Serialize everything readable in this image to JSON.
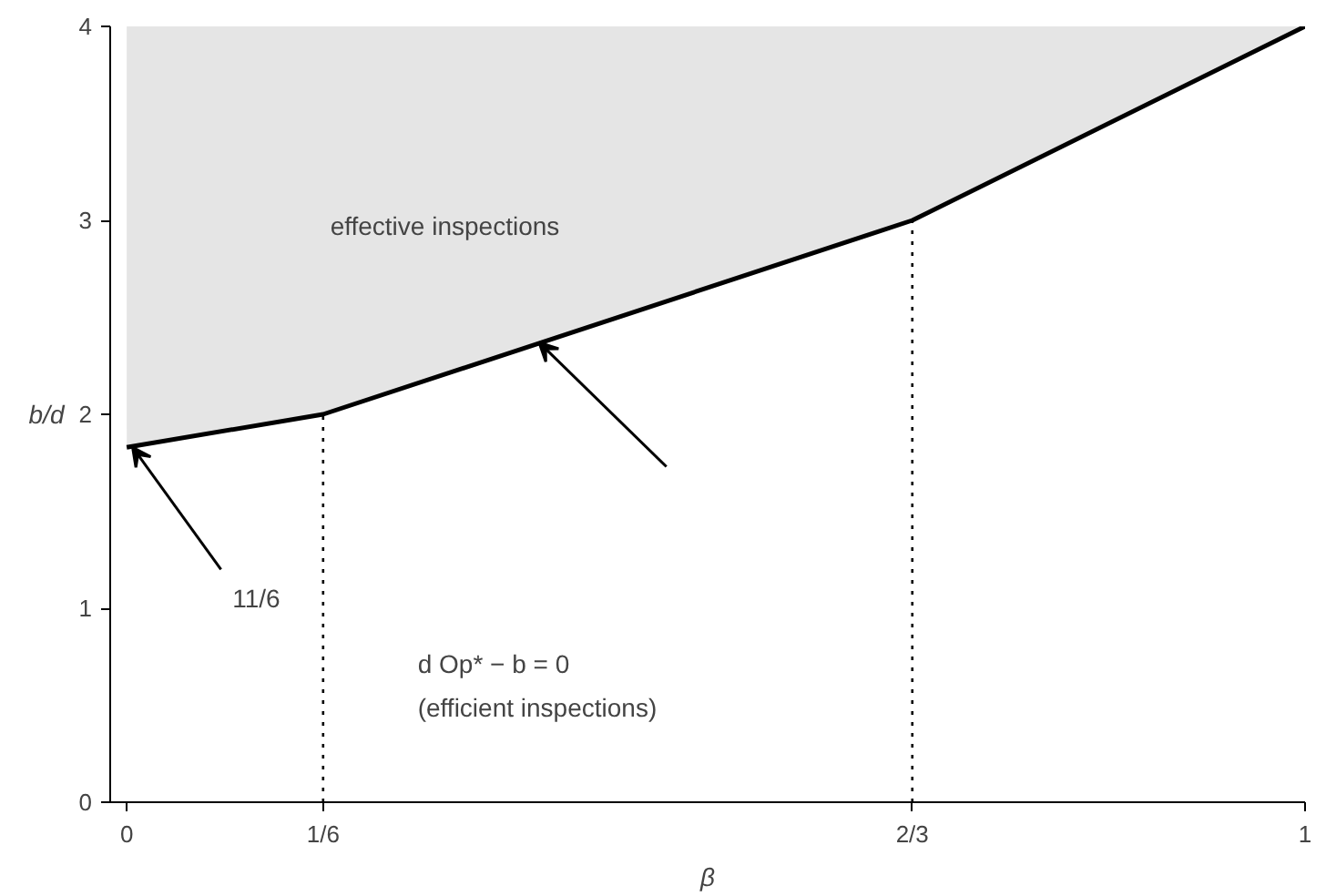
{
  "chart_data": {
    "type": "line",
    "xlabel": "β",
    "ylabel": "b/d",
    "x": [
      0,
      0.1667,
      0.6667,
      1
    ],
    "series": [
      {
        "color": "#000000",
        "values": [
          1.83,
          2,
          3,
          4
        ],
        "lower": [
          1.83,
          2,
          3,
          4
        ],
        "upper": [
          4,
          4,
          4,
          4
        ]
      }
    ],
    "xlim": [
      -0.014,
      1
    ],
    "ylim": [
      0,
      4
    ],
    "xticks": [
      0,
      {
        "value": 0.1667,
        "label": "1/6"
      },
      {
        "value": 0.6667,
        "label": "2/3"
      },
      1
    ],
    "yticks": [
      0,
      1,
      2,
      3,
      4
    ],
    "ref_lines": [
      {
        "axis": "x",
        "value": 0.1667,
        "line_style": "dotted",
        "color": "#000000"
      },
      {
        "axis": "x",
        "value": 0.6667,
        "line_style": "dotted",
        "color": "#000000"
      }
    ],
    "annotations": [
      "effective inspections",
      "d Op* − b = 0\n(efficient inspections)",
      {
        "text": "11/6",
        "x": 0.005,
        "y": 1.83
      }
    ],
    "grid": false
  }
}
